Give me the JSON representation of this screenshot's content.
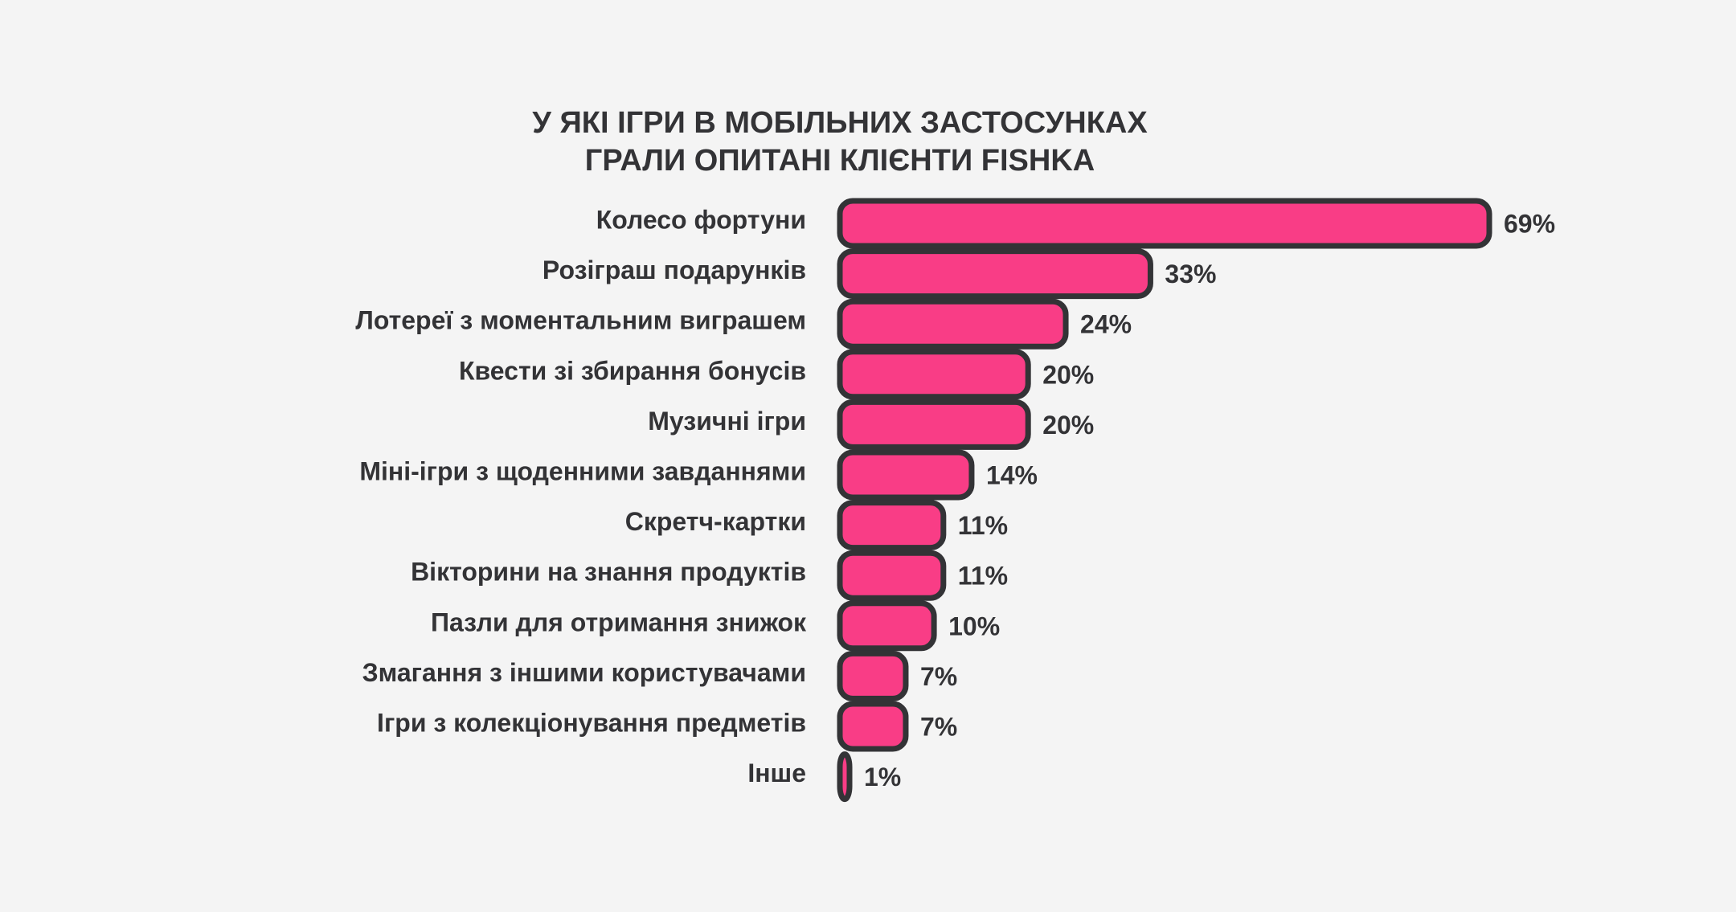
{
  "chart_data": {
    "type": "bar",
    "orientation": "horizontal",
    "title_lines": [
      "У ЯКІ ІГРИ В МОБІЛЬНИХ ЗАСТОСУНКАХ",
      "ГРАЛИ ОПИТАНІ КЛІЄНТИ FISHKA"
    ],
    "categories": [
      "Колесо фортуни",
      "Розіграш подарунків",
      "Лотереї з моментальним виграшем",
      "Квести зі збирання бонусів",
      "Музичні ігри",
      "Міні-ігри з щоденними завданнями",
      "Скретч-картки",
      "Вікторини на знання продуктів",
      "Пазли для отримання знижок",
      "Змагання з іншими користувачами",
      "Ігри з колекціонування предметів",
      "Інше"
    ],
    "values": [
      69,
      33,
      24,
      20,
      20,
      14,
      11,
      11,
      10,
      7,
      7,
      1
    ],
    "value_labels": [
      "69%",
      "33%",
      "24%",
      "20%",
      "20%",
      "14%",
      "11%",
      "11%",
      "10%",
      "7%",
      "7%",
      "1%"
    ],
    "unit": "%",
    "xlim": [
      0,
      69
    ],
    "grid": false,
    "legend": "none",
    "colors": {
      "bar_fill": "#f93d86",
      "bar_stroke": "#333336",
      "text": "#333336",
      "background": "#f4f4f4"
    }
  }
}
